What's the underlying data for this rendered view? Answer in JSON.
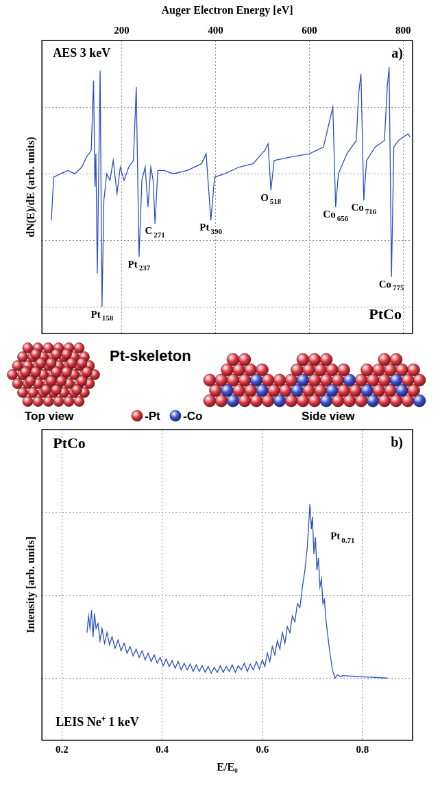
{
  "chart_data": [
    {
      "type": "line",
      "title": "AES 3 keV",
      "subtitle": "PtCo",
      "panel_label": "a)",
      "x_label": "Auger Electron Energy [eV]",
      "y_label": "dN(E)/dE (arb. units)",
      "color": "#2b4ebf",
      "x": [
        50,
        55,
        70,
        85,
        100,
        115,
        125,
        135,
        140,
        143,
        145,
        148,
        151,
        154,
        158,
        162,
        168,
        175,
        182,
        190,
        197,
        205,
        215,
        225,
        231,
        237,
        243,
        250,
        256,
        262,
        267,
        271,
        277,
        290,
        310,
        340,
        370,
        380,
        390,
        398,
        420,
        450,
        480,
        505,
        512,
        518,
        525,
        560,
        600,
        630,
        645,
        650,
        656,
        662,
        680,
        700,
        705,
        710,
        716,
        722,
        740,
        760,
        766,
        770,
        775,
        780,
        790,
        800,
        810,
        815
      ],
      "values": [
        1.3,
        1.95,
        2.0,
        2.05,
        2.0,
        2.1,
        2.25,
        2.35,
        3.4,
        1.8,
        2.3,
        0.5,
        2.0,
        3.55,
        0.0,
        1.6,
        2.0,
        1.9,
        2.2,
        1.7,
        2.1,
        1.9,
        2.1,
        2.2,
        3.3,
        0.75,
        1.9,
        2.1,
        1.5,
        2.1,
        1.9,
        1.25,
        2.05,
        2.05,
        2.0,
        2.05,
        2.15,
        2.3,
        1.3,
        1.95,
        2.0,
        2.1,
        2.15,
        2.35,
        2.45,
        1.75,
        2.2,
        2.25,
        2.3,
        2.4,
        2.85,
        3.0,
        1.5,
        2.0,
        2.3,
        2.5,
        3.2,
        3.5,
        1.6,
        2.2,
        2.4,
        2.5,
        3.3,
        3.6,
        0.45,
        2.4,
        2.5,
        2.55,
        2.6,
        2.55
      ],
      "xlim": [
        30,
        820
      ],
      "xticks": [
        200,
        400,
        600,
        800
      ],
      "ylim": [
        -0.4,
        4
      ],
      "yticks": [
        0,
        1,
        2,
        3
      ],
      "grid": true,
      "tick_labels": "x",
      "annotations": [
        {
          "text": "Pt",
          "sub": "158",
          "x": 158
        },
        {
          "text": "Pt",
          "sub": "237",
          "x": 237
        },
        {
          "text": "C",
          "sub": "271",
          "x": 271
        },
        {
          "text": "Pt",
          "sub": "390",
          "x": 390
        },
        {
          "text": "O",
          "sub": "518",
          "x": 518
        },
        {
          "text": "Co",
          "sub": "656",
          "x": 656
        },
        {
          "text": "Co",
          "sub": "716",
          "x": 716
        },
        {
          "text": "Co",
          "sub": "775",
          "x": 775
        }
      ]
    },
    {
      "type": "line",
      "title": "LEIS Ne⁺ 1 keV",
      "subtitle": "PtCo",
      "panel_label": "b)",
      "x_label": "E/E₀",
      "y_label": "Intensity [arb. units]",
      "color": "#2b4ebf",
      "x": [
        0.25,
        0.253,
        0.256,
        0.259,
        0.262,
        0.265,
        0.268,
        0.272,
        0.276,
        0.28,
        0.285,
        0.29,
        0.295,
        0.3,
        0.306,
        0.312,
        0.318,
        0.324,
        0.33,
        0.336,
        0.342,
        0.348,
        0.354,
        0.36,
        0.366,
        0.372,
        0.378,
        0.384,
        0.39,
        0.396,
        0.402,
        0.408,
        0.414,
        0.42,
        0.426,
        0.432,
        0.438,
        0.444,
        0.45,
        0.456,
        0.462,
        0.468,
        0.474,
        0.48,
        0.486,
        0.492,
        0.498,
        0.504,
        0.51,
        0.516,
        0.522,
        0.528,
        0.534,
        0.54,
        0.546,
        0.552,
        0.558,
        0.564,
        0.57,
        0.576,
        0.582,
        0.588,
        0.594,
        0.6,
        0.605,
        0.61,
        0.615,
        0.62,
        0.625,
        0.63,
        0.635,
        0.64,
        0.645,
        0.65,
        0.655,
        0.66,
        0.665,
        0.67,
        0.675,
        0.68,
        0.685,
        0.69,
        0.695,
        0.698,
        0.7,
        0.703,
        0.706,
        0.709,
        0.712,
        0.715,
        0.718,
        0.721,
        0.724,
        0.727,
        0.73,
        0.735,
        0.74,
        0.745,
        0.75,
        0.755,
        0.76,
        0.85
      ],
      "values": [
        1.55,
        1.75,
        1.6,
        1.82,
        1.5,
        1.78,
        1.6,
        1.66,
        1.45,
        1.6,
        1.42,
        1.55,
        1.4,
        1.5,
        1.36,
        1.46,
        1.33,
        1.42,
        1.3,
        1.38,
        1.27,
        1.35,
        1.25,
        1.33,
        1.22,
        1.3,
        1.2,
        1.28,
        1.18,
        1.25,
        1.15,
        1.23,
        1.14,
        1.21,
        1.12,
        1.2,
        1.1,
        1.18,
        1.1,
        1.17,
        1.08,
        1.16,
        1.08,
        1.15,
        1.07,
        1.14,
        1.06,
        1.13,
        1.07,
        1.15,
        1.07,
        1.14,
        1.08,
        1.16,
        1.07,
        1.15,
        1.1,
        1.18,
        1.08,
        1.17,
        1.1,
        1.2,
        1.11,
        1.22,
        1.14,
        1.3,
        1.2,
        1.38,
        1.28,
        1.45,
        1.35,
        1.55,
        1.42,
        1.62,
        1.55,
        1.75,
        1.68,
        1.9,
        1.85,
        2.1,
        2.3,
        2.6,
        3.1,
        2.8,
        2.95,
        2.5,
        2.7,
        2.3,
        2.45,
        2.1,
        2.2,
        1.9,
        1.95,
        1.7,
        1.55,
        1.3,
        1.1,
        1.0,
        1.04,
        1.02,
        1.03,
        1.0
      ],
      "xlim": [
        0.16,
        0.9
      ],
      "xticks": [
        0.2,
        0.4,
        0.6,
        0.8
      ],
      "ylim": [
        0.25,
        4.0
      ],
      "yticks": [
        1,
        2,
        3
      ],
      "grid": true,
      "tick_labels": "x",
      "annotations": [
        {
          "text": "Pt",
          "sub": "0.71",
          "x": 0.71
        }
      ]
    }
  ],
  "diagram": {
    "title": "Pt-skeleton",
    "views": [
      "Top view",
      "Side view"
    ],
    "key": [
      {
        "label": "-Pt",
        "color": "#e33540"
      },
      {
        "label": "-Co",
        "color": "#3b4fd6"
      }
    ]
  }
}
